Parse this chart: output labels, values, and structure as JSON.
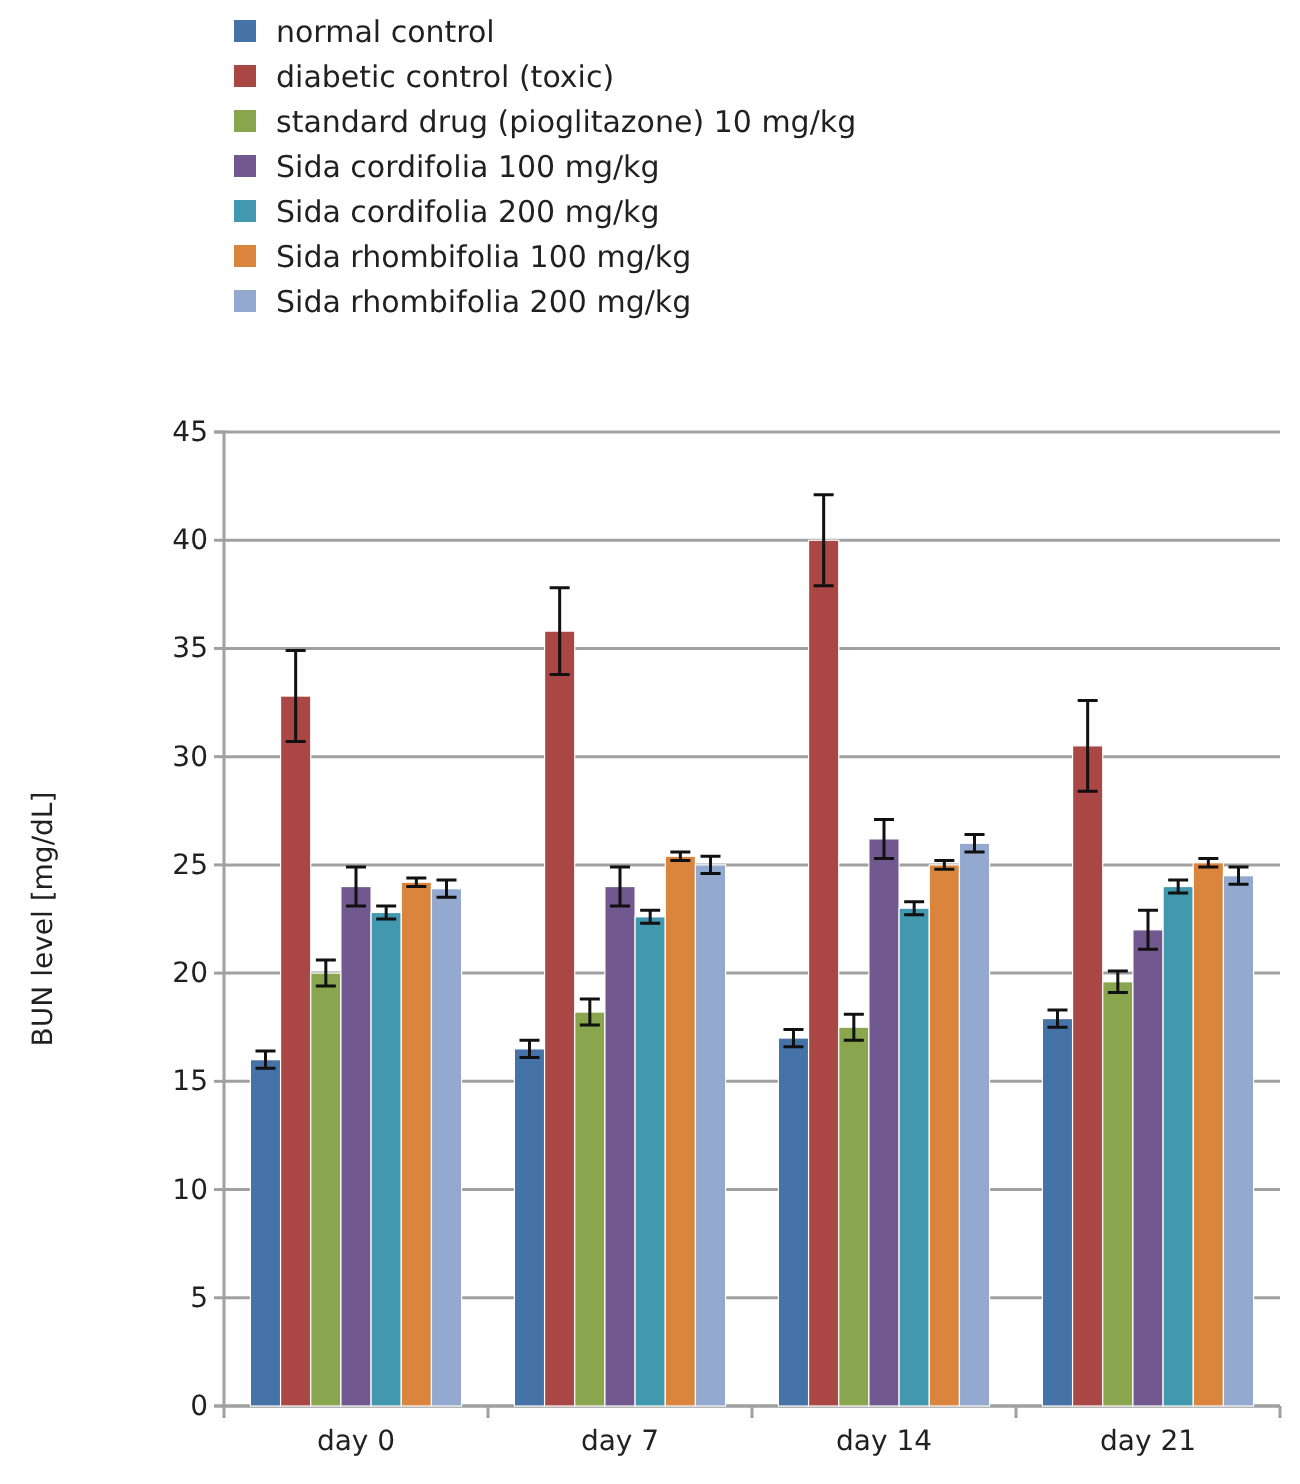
{
  "chart_data": {
    "type": "bar",
    "ylabel": "BUN level [mg/dL]",
    "categories": [
      "day 0",
      "day 7",
      "day 14",
      "day 21"
    ],
    "series": [
      {
        "name": "normal control",
        "color": "#4572a7",
        "values": [
          16,
          16.5,
          17,
          17.9
        ],
        "errors": [
          0.4,
          0.4,
          0.4,
          0.4
        ]
      },
      {
        "name": "diabetic control (toxic)",
        "color": "#aa4643",
        "values": [
          32.8,
          35.8,
          40,
          30.5
        ],
        "errors": [
          2.1,
          2,
          2.1,
          2.1
        ]
      },
      {
        "name": "standard drug (pioglitazone) 10 mg/kg",
        "color": "#89a54e",
        "values": [
          20,
          18.2,
          17.5,
          19.6
        ],
        "errors": [
          0.6,
          0.6,
          0.6,
          0.5
        ]
      },
      {
        "name": "Sida cordifolia 100 mg/kg",
        "color": "#71588f",
        "values": [
          24,
          24,
          26.2,
          22
        ],
        "errors": [
          0.9,
          0.9,
          0.9,
          0.9
        ]
      },
      {
        "name": "Sida cordifolia 200 mg/kg",
        "color": "#4198af",
        "values": [
          22.8,
          22.6,
          23,
          24
        ],
        "errors": [
          0.3,
          0.3,
          0.3,
          0.3
        ]
      },
      {
        "name": "Sida rhombifolia 100 mg/kg",
        "color": "#db843d",
        "values": [
          24.2,
          25.4,
          25,
          25.1
        ],
        "errors": [
          0.2,
          0.2,
          0.2,
          0.2
        ]
      },
      {
        "name": "Sida rhombifolia 200 mg/kg",
        "color": "#93a9cf",
        "values": [
          23.9,
          25,
          26,
          24.5
        ],
        "errors": [
          0.4,
          0.4,
          0.4,
          0.4
        ]
      }
    ],
    "ylim": [
      0,
      45
    ],
    "yticks": [
      0,
      5,
      10,
      15,
      20,
      25,
      30,
      35,
      40,
      45
    ],
    "grid": "y",
    "legend": "top left"
  }
}
